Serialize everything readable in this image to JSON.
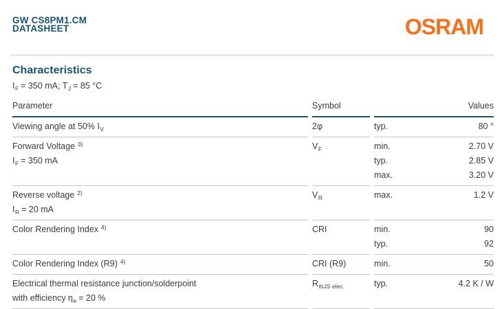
{
  "colors": {
    "accent": "#18556F",
    "brand": "#F4711E",
    "rule_light": "#C3C7CA",
    "divider": "#E7EAED"
  },
  "header": {
    "product": "GW CS8PM1.CM",
    "doc_type": "DATASHEET",
    "brand": "OSRAM"
  },
  "section": {
    "title": "Characteristics",
    "conditions": [
      {
        "t": "I"
      },
      {
        "t": "F",
        "sub": true
      },
      {
        "t": " = 350 mA; T"
      },
      {
        "t": "J",
        "sub": true
      },
      {
        "t": " = 85 °C"
      }
    ]
  },
  "table": {
    "headers": {
      "parameter": "Parameter",
      "symbol": "Symbol",
      "values": "Values"
    },
    "rows": [
      {
        "parameter": [
          [
            {
              "t": "Viewing angle at 50% I"
            },
            {
              "t": "V",
              "sub": true
            }
          ]
        ],
        "symbol": [
          {
            "t": "2φ"
          }
        ],
        "entries": [
          {
            "limit": "typ.",
            "value": "80 °"
          }
        ]
      },
      {
        "parameter": [
          [
            {
              "t": "Forward Voltage "
            },
            {
              "t": "3)",
              "sup": true
            }
          ],
          [
            {
              "t": "I"
            },
            {
              "t": "F",
              "sub": true
            },
            {
              "t": " = 350 mA"
            }
          ]
        ],
        "symbol": [
          {
            "t": "V"
          },
          {
            "t": "F",
            "sub": true
          }
        ],
        "entries": [
          {
            "limit": "min.",
            "value": "2.70 V"
          },
          {
            "limit": "typ.",
            "value": "2.85 V"
          },
          {
            "limit": "max.",
            "value": "3.20 V"
          }
        ]
      },
      {
        "parameter": [
          [
            {
              "t": "Reverse voltage "
            },
            {
              "t": "2)",
              "sup": true
            }
          ],
          [
            {
              "t": "I"
            },
            {
              "t": "R",
              "sub": true
            },
            {
              "t": " = 20 mA"
            }
          ]
        ],
        "symbol": [
          {
            "t": "V"
          },
          {
            "t": "R",
            "sub": true
          }
        ],
        "entries": [
          {
            "limit": "max.",
            "value": "1.2 V"
          }
        ]
      },
      {
        "parameter": [
          [
            {
              "t": "Color Rendering Index "
            },
            {
              "t": "4)",
              "sup": true
            }
          ]
        ],
        "symbol": [
          {
            "t": "CRI"
          }
        ],
        "entries": [
          {
            "limit": "min.",
            "value": "90"
          },
          {
            "limit": "typ.",
            "value": "92"
          }
        ]
      },
      {
        "parameter": [
          [
            {
              "t": "Color Rendering Index (R9) "
            },
            {
              "t": "4)",
              "sup": true
            }
          ]
        ],
        "symbol": [
          {
            "t": "CRI (R9)"
          }
        ],
        "entries": [
          {
            "limit": "min.",
            "value": "50"
          }
        ]
      },
      {
        "parameter": [
          [
            {
              "t": "Electrical thermal resistance junction/solderpoint"
            }
          ],
          [
            {
              "t": "with efficiency η"
            },
            {
              "t": "e",
              "sub": true
            },
            {
              "t": " = 20 %"
            }
          ]
        ],
        "symbol": [
          {
            "t": "R"
          },
          {
            "t": "thJS elec.",
            "sub": true
          }
        ],
        "entries": [
          {
            "limit": "typ.",
            "value": "4.2 K / W"
          }
        ]
      }
    ]
  }
}
